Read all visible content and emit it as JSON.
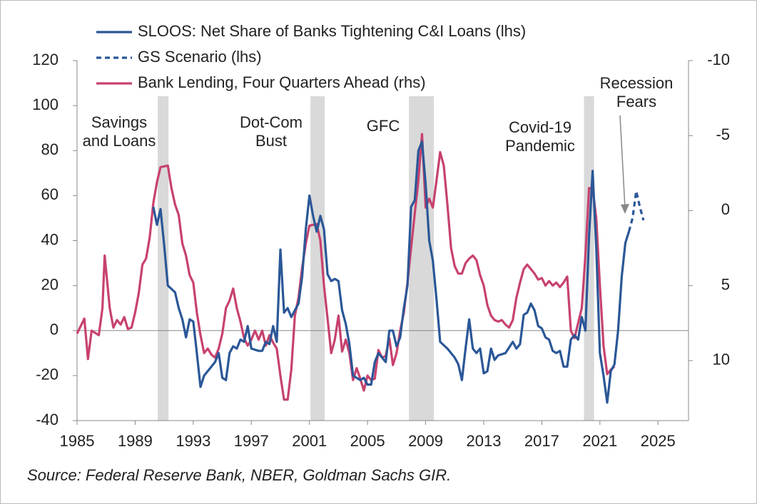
{
  "chart_data": {
    "type": "line",
    "xlim": [
      1985,
      2027.1
    ],
    "xticks": [
      1985,
      1989,
      1993,
      1997,
      2001,
      2005,
      2009,
      2013,
      2017,
      2021,
      2025
    ],
    "ylim": [
      -40,
      120
    ],
    "yticks": [
      -40,
      -20,
      0,
      20,
      40,
      60,
      80,
      100,
      120
    ],
    "y2lim": [
      14,
      -10
    ],
    "y2ticks": [
      -10,
      -5,
      0,
      5,
      10
    ],
    "recessions": [
      [
        1990.55,
        1991.3
      ],
      [
        2001.07,
        2002.05
      ],
      [
        2007.85,
        2009.57
      ],
      [
        2019.9,
        2020.6
      ]
    ],
    "annotations": [
      {
        "lines": [
          "Savings",
          "and Loans"
        ]
      },
      {
        "lines": [
          "Dot-Com",
          "Bust"
        ]
      },
      {
        "lines": [
          "GFC"
        ]
      },
      {
        "lines": [
          "Covid-19",
          "Pandemic"
        ]
      },
      {
        "lines": [
          "Recession",
          "Fears"
        ]
      }
    ],
    "source": "Source: Federal Reserve Bank, NBER, Goldman Sachs GIR.",
    "series": [
      {
        "name": "SLOOS: Net Share of Banks Tightening C&I Loans (lhs)",
        "color": "#2b5797",
        "dashed": false,
        "axis": "y",
        "x": [
          1990.25,
          1990.5,
          1990.75,
          1991.0,
          1991.25,
          1991.75,
          1992.0,
          1992.25,
          1992.5,
          1992.75,
          1993.0,
          1993.25,
          1993.5,
          1993.75,
          1994.0,
          1994.5,
          1994.75,
          1995.0,
          1995.25,
          1995.5,
          1995.75,
          1996.0,
          1996.25,
          1996.5,
          1996.75,
          1997.0,
          1997.5,
          1997.75,
          1998.0,
          1998.25,
          1998.5,
          1998.75,
          1999.0,
          1999.25,
          1999.5,
          1999.75,
          2000.0,
          2000.25,
          2000.5,
          2000.75,
          2001.0,
          2001.25,
          2001.5,
          2001.75,
          2002.0,
          2002.25,
          2002.5,
          2002.75,
          2003.0,
          2003.25,
          2003.5,
          2003.75,
          2004.0,
          2004.5,
          2004.75,
          2005.0,
          2005.25,
          2005.5,
          2005.75,
          2006.0,
          2006.25,
          2006.5,
          2006.75,
          2007.0,
          2007.25,
          2007.5,
          2007.75,
          2008.0,
          2008.25,
          2008.5,
          2008.75,
          2009.0,
          2009.25,
          2009.5,
          2009.75,
          2010.0,
          2010.5,
          2010.75,
          2011.0,
          2011.25,
          2011.5,
          2011.75,
          2012.0,
          2012.25,
          2012.5,
          2012.75,
          2013.0,
          2013.25,
          2013.5,
          2013.75,
          2014.0,
          2014.5,
          2015.0,
          2015.25,
          2015.5,
          2015.75,
          2016.0,
          2016.25,
          2016.5,
          2016.75,
          2017.0,
          2017.25,
          2017.5,
          2017.75,
          2018.0,
          2018.25,
          2018.5,
          2018.75,
          2019.0,
          2019.25,
          2019.5,
          2019.75,
          2020.0,
          2020.25,
          2020.5,
          2020.75,
          2021.0,
          2021.25,
          2021.5,
          2021.75,
          2022.0,
          2022.25,
          2022.5,
          2022.75,
          2023.0
        ],
        "values": [
          55,
          47,
          54,
          38,
          20,
          17,
          10,
          5,
          -3,
          5,
          4,
          -10,
          -25,
          -20,
          -18,
          -14,
          -10,
          -21,
          -22,
          -10,
          -7,
          -8,
          -4,
          -5,
          2,
          -8,
          -9,
          -9,
          -5,
          -6,
          2,
          -5,
          36,
          8,
          10,
          6,
          9,
          12,
          24,
          45,
          60,
          51,
          44,
          51,
          45,
          25,
          22,
          23,
          22,
          9,
          3,
          -6,
          -20,
          -22,
          -21,
          -24,
          -24,
          -14,
          -10,
          -12,
          -14,
          0,
          0,
          -7,
          -3,
          10,
          20,
          55,
          58,
          80,
          84,
          65,
          40,
          31,
          14,
          -5,
          -8,
          -10,
          -12,
          -15,
          -22,
          -8,
          5,
          -8,
          -10,
          -8,
          -19,
          -18,
          -8,
          -13,
          -11,
          -10,
          -5,
          -8,
          -6,
          7,
          8,
          12,
          9,
          2,
          1,
          -3,
          -4,
          -9,
          -10,
          -9,
          -16,
          -16,
          -4,
          -2,
          -4,
          6,
          0,
          42,
          71,
          37,
          -10,
          -20,
          -32,
          -18,
          -15,
          0,
          24,
          39,
          44
        ]
      },
      {
        "name": "GS Scenario (lhs)",
        "color": "#2b5797",
        "dashed": true,
        "axis": "y",
        "x": [
          2023.0,
          2023.25,
          2023.5,
          2023.75,
          2024.0
        ],
        "values": [
          44,
          50,
          62,
          55,
          49
        ]
      },
      {
        "name": "Bank Lending, Four Quarters Ahead (rhs)",
        "color": "#c7426f",
        "dashed": false,
        "axis": "y2",
        "x": [
          1985.0,
          1985.5,
          1985.75,
          1986.0,
          1986.5,
          1986.75,
          1986.9,
          1987.25,
          1987.5,
          1987.75,
          1988.0,
          1988.25,
          1988.5,
          1988.75,
          1989.0,
          1989.25,
          1989.5,
          1989.75,
          1990.0,
          1990.25,
          1990.5,
          1990.75,
          1991.25,
          1991.5,
          1991.75,
          1992.0,
          1992.25,
          1992.5,
          1992.75,
          1993.0,
          1993.25,
          1993.5,
          1993.75,
          1994.0,
          1994.25,
          1994.5,
          1994.75,
          1995.0,
          1995.25,
          1995.5,
          1995.75,
          1996.0,
          1996.25,
          1996.5,
          1996.75,
          1997.0,
          1997.25,
          1997.5,
          1997.75,
          1998.0,
          1998.25,
          1998.5,
          1998.75,
          1999.0,
          1999.25,
          1999.5,
          1999.75,
          2000.0,
          2000.25,
          2000.5,
          2000.75,
          2001.0,
          2001.5,
          2001.75,
          2002.0,
          2002.25,
          2002.5,
          2002.75,
          2003.0,
          2003.25,
          2003.5,
          2003.75,
          2004.0,
          2004.25,
          2004.5,
          2004.75,
          2005.0,
          2005.25,
          2005.5,
          2005.75,
          2006.0,
          2006.25,
          2006.5,
          2006.75,
          2007.0,
          2007.25,
          2007.5,
          2007.75,
          2008.0,
          2008.25,
          2008.5,
          2008.75,
          2009.0,
          2009.25,
          2009.5,
          2009.75,
          2010.0,
          2010.25,
          2010.5,
          2010.75,
          2011.0,
          2011.25,
          2011.5,
          2011.75,
          2012.0,
          2012.25,
          2012.5,
          2012.75,
          2013.0,
          2013.25,
          2013.5,
          2013.75,
          2014.0,
          2014.25,
          2014.5,
          2014.75,
          2015.0,
          2015.25,
          2015.5,
          2015.75,
          2016.0,
          2016.25,
          2016.5,
          2016.75,
          2017.0,
          2017.25,
          2017.5,
          2017.75,
          2018.0,
          2018.25,
          2018.5,
          2018.75,
          2019.0,
          2019.25,
          2019.5,
          2019.75,
          2020.0,
          2020.25,
          2020.5,
          2020.75,
          2021.0,
          2021.25,
          2021.5,
          2021.75,
          2022.0
        ],
        "values": [
          8.2,
          7.2,
          9.9,
          8.0,
          8.3,
          6.5,
          3.0,
          6.5,
          7.8,
          7.3,
          7.6,
          7.1,
          7.9,
          7.8,
          6.8,
          5.5,
          3.6,
          3.2,
          1.8,
          -0.5,
          -1.9,
          -2.9,
          -3.0,
          -1.5,
          -0.4,
          0.3,
          2.2,
          3.0,
          4.3,
          4.8,
          6.8,
          8.3,
          9.5,
          9.2,
          9.6,
          9.8,
          9.2,
          8.2,
          6.5,
          6.0,
          5.2,
          6.5,
          7.4,
          8.5,
          9.0,
          8.6,
          8.0,
          8.6,
          8.0,
          9.0,
          8.3,
          8.8,
          9.2,
          11.0,
          12.6,
          12.6,
          10.6,
          7.0,
          5.8,
          3.8,
          2.2,
          1.0,
          0.9,
          2.0,
          5.0,
          7.2,
          9.5,
          8.6,
          7.0,
          9.4,
          8.6,
          9.5,
          11.3,
          10.5,
          11.2,
          12.0,
          11.0,
          11.3,
          11.2,
          9.3,
          9.8,
          9.7,
          8.5,
          10.3,
          9.5,
          8.0,
          6.8,
          4.8,
          2.5,
          0.2,
          -2.0,
          -5.1,
          -0.2,
          -0.8,
          -0.2,
          -2.0,
          -3.9,
          -3.0,
          -0.4,
          2.5,
          3.7,
          4.2,
          4.2,
          3.5,
          3.2,
          3.0,
          3.3,
          4.3,
          5.0,
          6.3,
          7.0,
          7.3,
          7.4,
          7.3,
          7.6,
          7.8,
          7.3,
          5.8,
          4.8,
          3.9,
          3.6,
          3.9,
          4.2,
          4.6,
          4.5,
          5.0,
          4.7,
          5.0,
          4.8,
          5.1,
          4.8,
          4.4,
          8.0,
          8.5,
          7.5,
          6.5,
          3.0,
          -1.5,
          -1.5,
          0.5,
          5.0,
          9.0,
          10.9,
          10.6,
          10.4
        ]
      }
    ]
  }
}
